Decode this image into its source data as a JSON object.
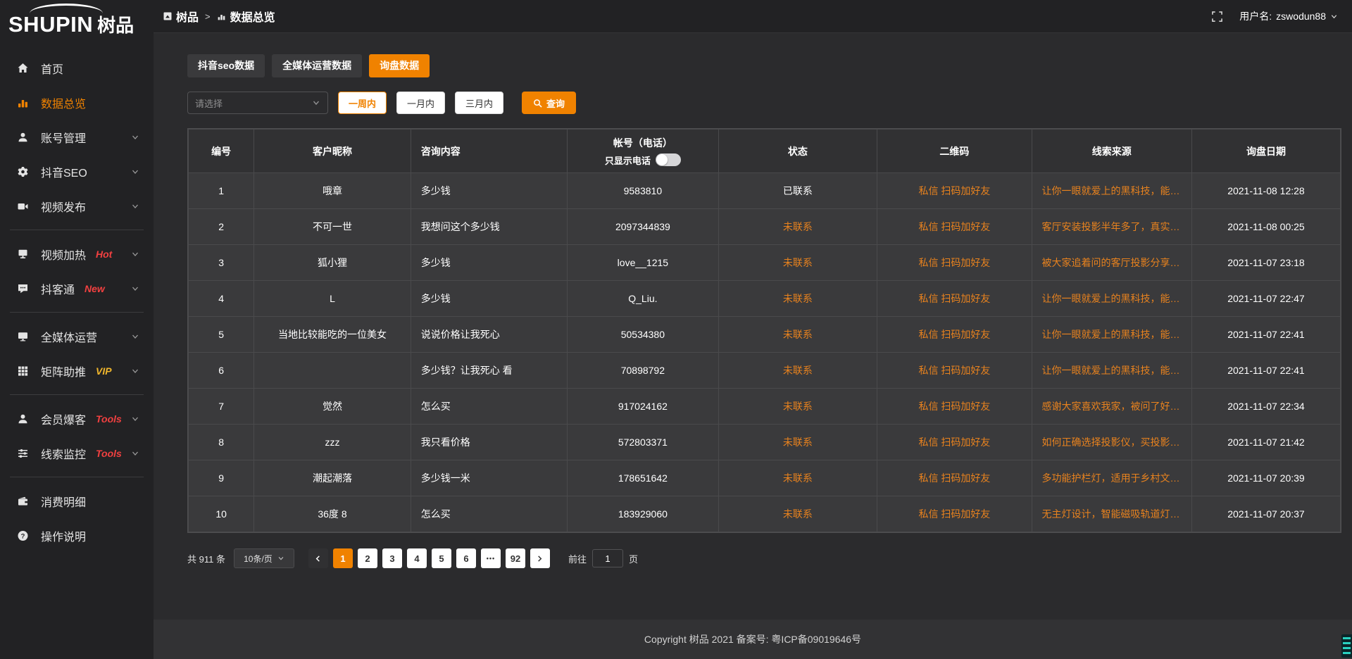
{
  "colors": {
    "accent": "#f08200",
    "link_orange": "#e8821e",
    "badge_red": "#f24040",
    "badge_vip": "#f0b62c"
  },
  "logo": {
    "text_en": "SHUPIN",
    "text_cn": "树品"
  },
  "header": {
    "breadcrumb": [
      "树品",
      "数据总览"
    ],
    "breadcrumb_sep": ">",
    "username_label": "用户名:",
    "username": "zswodun88"
  },
  "sidebar": {
    "groups": [
      {
        "items": [
          {
            "id": "home",
            "label": "首页",
            "icon": "home-icon"
          },
          {
            "id": "data-overview",
            "label": "数据总览",
            "icon": "chart-icon",
            "active": true
          },
          {
            "id": "account-manage",
            "label": "账号管理",
            "icon": "user-icon",
            "expandable": true
          },
          {
            "id": "douyin-seo",
            "label": "抖音SEO",
            "icon": "gear-icon",
            "expandable": true
          },
          {
            "id": "video-publish",
            "label": "视频发布",
            "icon": "video-icon",
            "expandable": true
          }
        ]
      },
      {
        "items": [
          {
            "id": "video-heat",
            "label": "视频加热",
            "icon": "heat-icon",
            "badge": "Hot",
            "badge_color": "#f24040",
            "expandable": true
          },
          {
            "id": "douketong",
            "label": "抖客通",
            "icon": "chat-icon",
            "badge": "New",
            "badge_color": "#f24040",
            "expandable": true
          }
        ]
      },
      {
        "items": [
          {
            "id": "omnimedia",
            "label": "全媒体运营",
            "icon": "monitor-icon",
            "expandable": true
          },
          {
            "id": "matrix-boost",
            "label": "矩阵助推",
            "icon": "grid-icon",
            "badge": "VIP",
            "badge_color": "#f0b62c",
            "expandable": true
          }
        ]
      },
      {
        "items": [
          {
            "id": "member-baoke",
            "label": "会员爆客",
            "icon": "member-icon",
            "badge": "Tools",
            "badge_color": "#f24040",
            "expandable": true
          },
          {
            "id": "clue-monitor",
            "label": "线索监控",
            "icon": "sliders-icon",
            "badge": "Tools",
            "badge_color": "#f24040",
            "expandable": true
          }
        ]
      },
      {
        "items": [
          {
            "id": "consume-detail",
            "label": "消费明细",
            "icon": "wallet-icon"
          },
          {
            "id": "operation-guide",
            "label": "操作说明",
            "icon": "question-icon"
          }
        ]
      }
    ]
  },
  "tabs": [
    {
      "id": "douyin-seo-data",
      "label": "抖音seo数据"
    },
    {
      "id": "omnimedia-data",
      "label": "全媒体运营数据"
    },
    {
      "id": "inquiry-data",
      "label": "询盘数据",
      "active": true
    }
  ],
  "filters": {
    "select_placeholder": "请选择",
    "range_buttons": [
      {
        "id": "one-week",
        "label": "一周内",
        "active": true
      },
      {
        "id": "one-month",
        "label": "一月内"
      },
      {
        "id": "three-month",
        "label": "三月内"
      }
    ],
    "search_label": "查询"
  },
  "table": {
    "columns": [
      {
        "label": "编号"
      },
      {
        "label": "客户昵称"
      },
      {
        "label": "咨询内容"
      },
      {
        "label": "帐号（电话）",
        "sub_label": "只显示电话",
        "toggle_on": false
      },
      {
        "label": "状态"
      },
      {
        "label": "二维码"
      },
      {
        "label": "线索来源"
      },
      {
        "label": "询盘日期"
      }
    ],
    "rows": [
      {
        "no": "1",
        "nickname": "哦章",
        "content": "多少钱",
        "account": "9583810",
        "status": "已联系",
        "contacted": true,
        "qrcode": "私信 扫码加好友",
        "source": "让你一眼就爱上的黑科技，能…",
        "date": "2021-11-08 12:28"
      },
      {
        "no": "2",
        "nickname": "不可一世",
        "content": "我想问这个多少钱",
        "account": "2097344839",
        "status": "未联系",
        "contacted": false,
        "qrcode": "私信 扫码加好友",
        "source": "客厅安装投影半年多了，真实…",
        "date": "2021-11-08 00:25"
      },
      {
        "no": "3",
        "nickname": "狐小狸",
        "content": "多少钱",
        "account": "love__1215",
        "status": "未联系",
        "contacted": false,
        "qrcode": "私信 扫码加好友",
        "source": "被大家追着问的客厅投影分享…",
        "date": "2021-11-07 23:18"
      },
      {
        "no": "4",
        "nickname": "L",
        "content": "多少钱",
        "account": "Q_Liu.",
        "status": "未联系",
        "contacted": false,
        "qrcode": "私信 扫码加好友",
        "source": "让你一眼就爱上的黑科技，能…",
        "date": "2021-11-07 22:47"
      },
      {
        "no": "5",
        "nickname": "当地比较能吃的一位美女",
        "content": "说说价格让我死心",
        "account": "50534380",
        "status": "未联系",
        "contacted": false,
        "qrcode": "私信 扫码加好友",
        "source": "让你一眼就爱上的黑科技，能…",
        "date": "2021-11-07 22:41"
      },
      {
        "no": "6",
        "nickname": "",
        "content": "多少钱？让我死心 看",
        "account": "70898792",
        "status": "未联系",
        "contacted": false,
        "qrcode": "私信 扫码加好友",
        "source": "让你一眼就爱上的黑科技，能…",
        "date": "2021-11-07 22:41"
      },
      {
        "no": "7",
        "nickname": "觉然",
        "content": "怎么买",
        "account": "917024162",
        "status": "未联系",
        "contacted": false,
        "qrcode": "私信 扫码加好友",
        "source": "感谢大家喜欢我家，被问了好…",
        "date": "2021-11-07 22:34"
      },
      {
        "no": "8",
        "nickname": "zzz",
        "content": "我只看价格",
        "account": "572803371",
        "status": "未联系",
        "contacted": false,
        "qrcode": "私信 扫码加好友",
        "source": "如何正确选择投影仪，买投影…",
        "date": "2021-11-07 21:42"
      },
      {
        "no": "9",
        "nickname": "潮起潮落",
        "content": "多少钱一米",
        "account": "178651642",
        "status": "未联系",
        "contacted": false,
        "qrcode": "私信 扫码加好友",
        "source": "多功能护栏灯，适用于乡村文…",
        "date": "2021-11-07 20:39"
      },
      {
        "no": "10",
        "nickname": "36度 8",
        "content": "怎么买",
        "account": "183929060",
        "status": "未联系",
        "contacted": false,
        "qrcode": "私信 扫码加好友",
        "source": "无主灯设计，智能磁吸轨道灯…",
        "date": "2021-11-07 20:37"
      }
    ]
  },
  "pagination": {
    "total_label": "共 911 条",
    "page_size": "10条/页",
    "pages": [
      {
        "label": "1",
        "active": true
      },
      {
        "label": "2"
      },
      {
        "label": "3"
      },
      {
        "label": "4"
      },
      {
        "label": "5"
      },
      {
        "label": "6"
      },
      {
        "label": "•••",
        "ellipsis": true
      },
      {
        "label": "92"
      }
    ],
    "goto_label": "前往",
    "goto_value": "1",
    "goto_suffix": "页"
  },
  "footer": {
    "copyright": "Copyright 树品 2021 备案号: 粤ICP备09019646号"
  }
}
